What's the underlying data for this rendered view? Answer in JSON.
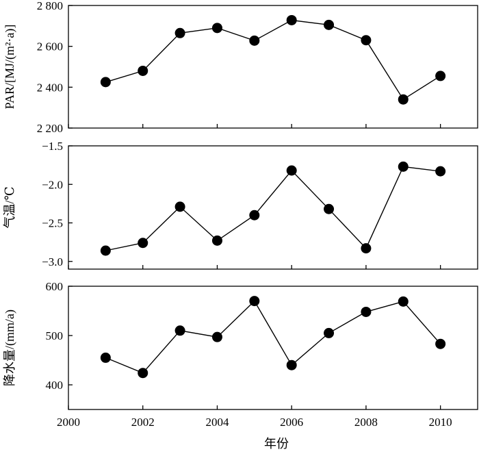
{
  "chart_data": {
    "type": "line",
    "xlabel": "年份",
    "xlim": [
      2000,
      2011
    ],
    "x_ticks": [
      2000,
      2002,
      2004,
      2006,
      2008,
      2010
    ],
    "x_tick_labels": [
      "2000",
      "2002",
      "2004",
      "2006",
      "2008",
      "2010"
    ],
    "x": [
      2001,
      2002,
      2003,
      2004,
      2005,
      2006,
      2007,
      2008,
      2009,
      2010
    ],
    "grid": false,
    "marker": "filled-circle",
    "panels": [
      {
        "ylabel": "PAR/[MJ/(m²·a)]",
        "ylim": [
          2200,
          2800
        ],
        "y_ticks": [
          2200,
          2400,
          2600,
          2800
        ],
        "y_tick_labels": [
          "2 200",
          "2 400",
          "2 600",
          "2 800"
        ],
        "values": [
          2425,
          2480,
          2665,
          2690,
          2628,
          2728,
          2705,
          2630,
          2340,
          2455
        ]
      },
      {
        "ylabel": "气温/℃",
        "ylim": [
          -3.1,
          -1.5
        ],
        "y_ticks": [
          -3.0,
          -2.5,
          -2.0,
          -1.5
        ],
        "y_tick_labels": [
          "−3.0",
          "−2.5",
          "−2.0",
          "−1.5"
        ],
        "values": [
          -2.86,
          -2.76,
          -2.29,
          -2.73,
          -2.4,
          -1.82,
          -2.32,
          -2.83,
          -1.77,
          -1.83
        ]
      },
      {
        "ylabel": "降水量/(mm/a)",
        "ylim": [
          350,
          600
        ],
        "y_ticks": [
          400,
          500,
          600
        ],
        "y_tick_labels": [
          "400",
          "500",
          "600"
        ],
        "values": [
          455,
          424,
          510,
          497,
          570,
          440,
          505,
          548,
          569,
          483
        ]
      }
    ]
  }
}
